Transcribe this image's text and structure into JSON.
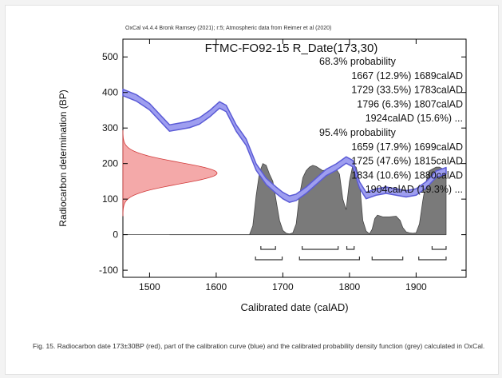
{
  "chart_data": {
    "type": "area",
    "attribution": "OxCal v4.4.4 Bronk Ramsey (2021); r:5; Atmospheric data from Reimer et al (2020)",
    "title": "FTMC-FO92-15 R_Date(173,30)",
    "xlabel": "Calibrated date (calAD)",
    "ylabel": "Radiocarbon determination (BP)",
    "xlim": [
      1460,
      1975
    ],
    "ylim": [
      -120,
      550
    ],
    "x_ticks": [
      1500,
      1600,
      1700,
      1800,
      1900
    ],
    "y_ticks": [
      -100,
      0,
      100,
      200,
      300,
      400,
      500
    ],
    "probability_text": [
      "68.3% probability",
      "1667 (12.9%) 1689calAD",
      "1729 (33.5%) 1783calAD",
      "1796 (6.3%) 1807calAD",
      "1924calAD (15.6%) ...",
      "95.4% probability",
      "1659 (17.9%) 1699calAD",
      "1725 (47.6%) 1815calAD",
      "1834 (10.6%) 1880calAD",
      "1904calAD (19.3%) ..."
    ],
    "radiocarbon_date": {
      "mean": 173,
      "sd": 30
    },
    "calibration_curve": {
      "x": [
        1460,
        1480,
        1500,
        1515,
        1530,
        1545,
        1560,
        1575,
        1590,
        1605,
        1615,
        1630,
        1645,
        1660,
        1675,
        1690,
        1700,
        1710,
        1720,
        1735,
        1750,
        1765,
        1780,
        1795,
        1805,
        1815,
        1825,
        1840,
        1855,
        1870,
        1885,
        1900,
        1915,
        1930,
        1945
      ],
      "y": [
        400,
        385,
        360,
        330,
        300,
        305,
        310,
        320,
        340,
        365,
        355,
        300,
        260,
        190,
        150,
        125,
        110,
        100,
        105,
        125,
        150,
        175,
        190,
        210,
        200,
        140,
        110,
        120,
        125,
        120,
        115,
        120,
        140,
        170,
        180
      ],
      "band": 9
    },
    "probability_density": {
      "x": [
        1460,
        1650,
        1655,
        1660,
        1665,
        1670,
        1675,
        1680,
        1685,
        1690,
        1695,
        1700,
        1705,
        1710,
        1715,
        1720,
        1725,
        1730,
        1735,
        1740,
        1745,
        1750,
        1760,
        1770,
        1780,
        1785,
        1790,
        1795,
        1800,
        1805,
        1810,
        1815,
        1820,
        1825,
        1830,
        1834,
        1838,
        1842,
        1850,
        1860,
        1870,
        1876,
        1880,
        1885,
        1890,
        1895,
        1900,
        1905,
        1910,
        1915,
        1920,
        1925,
        1930,
        1935,
        1940,
        1945
      ],
      "y": [
        0,
        0,
        25,
        110,
        175,
        200,
        195,
        170,
        150,
        95,
        40,
        12,
        4,
        2,
        5,
        30,
        110,
        160,
        180,
        190,
        195,
        192,
        180,
        185,
        185,
        170,
        100,
        70,
        150,
        195,
        190,
        150,
        40,
        10,
        2,
        15,
        45,
        55,
        50,
        50,
        52,
        40,
        20,
        8,
        5,
        4,
        5,
        30,
        95,
        150,
        180,
        185,
        190,
        190,
        185,
        175
      ]
    },
    "ranges_68": [
      [
        1667,
        1689
      ],
      [
        1729,
        1783
      ],
      [
        1796,
        1807
      ],
      [
        1924,
        1945
      ]
    ],
    "ranges_95": [
      [
        1659,
        1699
      ],
      [
        1725,
        1815
      ],
      [
        1834,
        1880
      ],
      [
        1904,
        1945
      ]
    ],
    "grid": false
  },
  "caption": "Fig. 15. Radiocarbon date 173±30BP (red), part of the calibration curve (blue) and the calibrated probability density function (grey) calculated in OxCal.",
  "colors": {
    "calibration": "#5b5bd6",
    "calibration_fill": "#9e9ef0",
    "radiocarbon": "#f29a9a",
    "radiocarbon_edge": "#d23c3c",
    "density": "#7a7a7a",
    "density_edge": "#444444"
  }
}
